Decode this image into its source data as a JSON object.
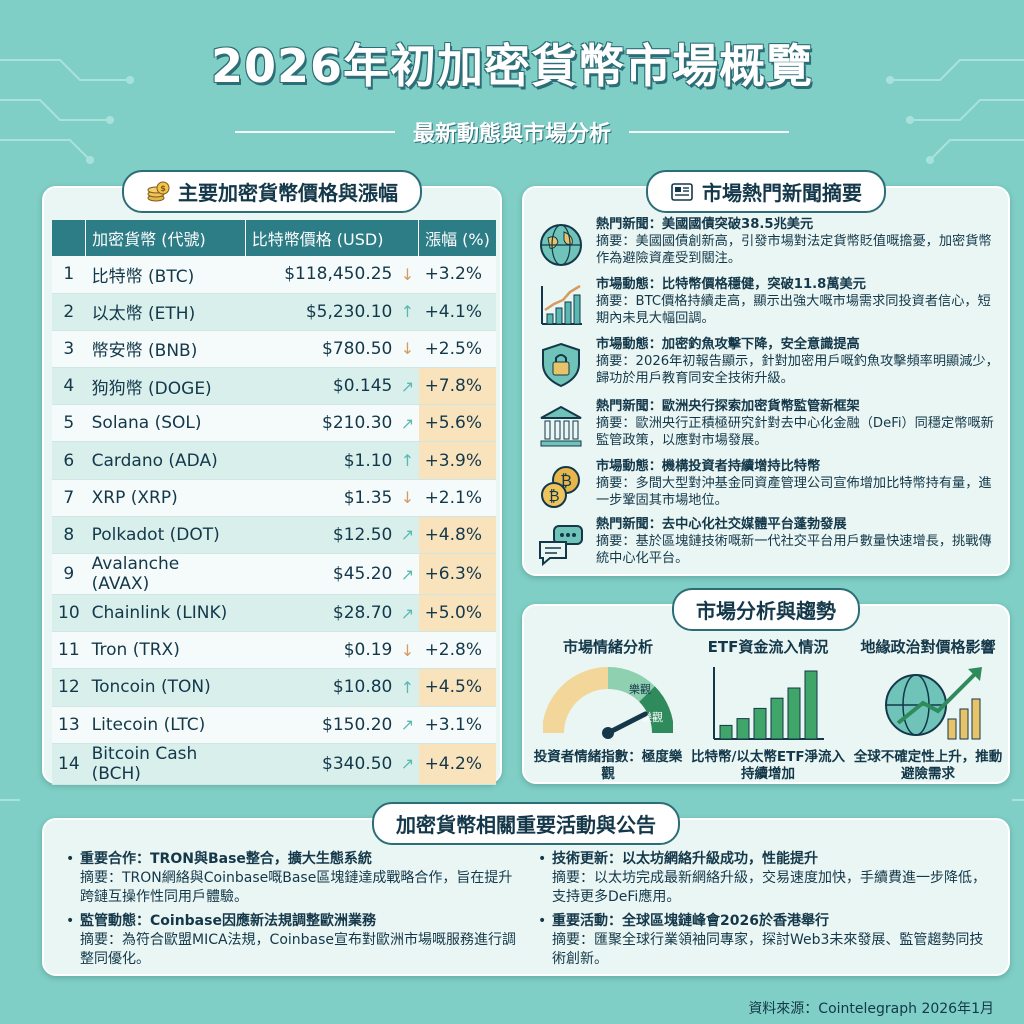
{
  "header": {
    "title": "2026年初加密貨幣市場概覽",
    "subtitle": "最新動態與市場分析"
  },
  "prices": {
    "section_title": "主要加密貨幣價格與漲幅",
    "columns": [
      "加密貨幣 (代號)",
      "比特幣價格 (USD)",
      "漲幅 (%)"
    ],
    "rows": [
      {
        "rank": "1",
        "name": "比特幣 (BTC)",
        "price": "$118,450.25",
        "trend": "down",
        "change": "+3.2%",
        "highlight": false
      },
      {
        "rank": "2",
        "name": "以太幣 (ETH)",
        "price": "$5,230.10",
        "trend": "up",
        "change": "+4.1%",
        "highlight": false
      },
      {
        "rank": "3",
        "name": "幣安幣 (BNB)",
        "price": "$780.50",
        "trend": "down",
        "change": "+2.5%",
        "highlight": false
      },
      {
        "rank": "4",
        "name": "狗狗幣 (DOGE)",
        "price": "$0.145",
        "trend": "diag",
        "change": "+7.8%",
        "highlight": true
      },
      {
        "rank": "5",
        "name": "Solana (SOL)",
        "price": "$210.30",
        "trend": "diag",
        "change": "+5.6%",
        "highlight": true
      },
      {
        "rank": "6",
        "name": "Cardano (ADA)",
        "price": "$1.10",
        "trend": "up",
        "change": "+3.9%",
        "highlight": true
      },
      {
        "rank": "7",
        "name": "XRP (XRP)",
        "price": "$1.35",
        "trend": "down",
        "change": "+2.1%",
        "highlight": false
      },
      {
        "rank": "8",
        "name": "Polkadot (DOT)",
        "price": "$12.50",
        "trend": "diag",
        "change": "+4.8%",
        "highlight": true
      },
      {
        "rank": "9",
        "name": "Avalanche (AVAX)",
        "price": "$45.20",
        "trend": "diag",
        "change": "+6.3%",
        "highlight": true
      },
      {
        "rank": "10",
        "name": "Chainlink (LINK)",
        "price": "$28.70",
        "trend": "diag",
        "change": "+5.0%",
        "highlight": true
      },
      {
        "rank": "11",
        "name": "Tron (TRX)",
        "price": "$0.19",
        "trend": "down",
        "change": "+2.8%",
        "highlight": false
      },
      {
        "rank": "12",
        "name": "Toncoin (TON)",
        "price": "$10.80",
        "trend": "up",
        "change": "+4.5%",
        "highlight": true
      },
      {
        "rank": "13",
        "name": "Litecoin (LTC)",
        "price": "$150.20",
        "trend": "diag",
        "change": "+3.1%",
        "highlight": false
      },
      {
        "rank": "14",
        "name": "Bitcoin Cash (BCH)",
        "price": "$340.50",
        "trend": "diag",
        "change": "+4.2%",
        "highlight": true
      }
    ]
  },
  "news": {
    "section_title": "市場熱門新聞摘要",
    "items": [
      {
        "icon": "globe-icon",
        "head": "熱門新聞：美國國債突破38.5兆美元",
        "body": "摘要：美國國債創新高，引發市場對法定貨幣貶值嘅擔憂，加密貨幣作為避險資產受到關注。"
      },
      {
        "icon": "growth-chart-icon",
        "head": "市場動態：比特幣價格穩健，突破11.8萬美元",
        "body": "摘要：BTC價格持續走高，顯示出強大嘅市場需求同投資者信心，短期內未見大幅回調。"
      },
      {
        "icon": "security-shield-icon",
        "head": "市場動態：加密釣魚攻擊下降，安全意識提高",
        "body": "摘要：2026年初報告顯示，針對加密用戶嘅釣魚攻擊頻率明顯減少，歸功於用戶教育同安全技術升級。"
      },
      {
        "icon": "bank-icon",
        "head": "熱門新聞：歐洲央行探索加密貨幣監管新框架",
        "body": "摘要：歐洲央行正積極研究針對去中心化金融（DeFi）同穩定幣嘅新監管政策，以應對市場發展。"
      },
      {
        "icon": "bitcoin-coins-icon",
        "head": "市場動態：機構投資者持續增持比特幣",
        "body": "摘要：多間大型對沖基金同資產管理公司宣佈增加比特幣持有量，進一步鞏固其市場地位。"
      },
      {
        "icon": "chat-bubbles-icon",
        "head": "熱門新聞：去中心化社交媒體平台蓬勃發展",
        "body": "摘要：基於區塊鏈技術嘅新一代社交平台用戶數量快速增長，挑戰傳統中心化平台。"
      }
    ]
  },
  "analysis": {
    "section_title": "市場分析與趨勢",
    "sentiment": {
      "title": "市場情緒分析",
      "gauge_labels": [
        "樂觀",
        "樂觀"
      ],
      "desc": "投資者情緒指數：極度樂觀",
      "level": 0.85
    },
    "etf": {
      "title": "ETF資金流入情況",
      "desc": "比特幣/以太幣ETF淨流入持續增加",
      "bars": [
        0.2,
        0.3,
        0.45,
        0.6,
        0.75,
        1.0
      ]
    },
    "geo": {
      "title": "地緣政治對價格影響",
      "desc": "全球不確定性上升，推動避險需求"
    }
  },
  "events": {
    "section_title": "加密貨幣相關重要活動與公告",
    "items": [
      {
        "head": "重要合作：TRON與Base整合，擴大生態系統",
        "body": "摘要：TRON網絡與Coinbase嘅Base區塊鏈達成戰略合作，旨在提升跨鏈互操作性同用戶體驗。"
      },
      {
        "head": "監管動態：Coinbase因應新法規調整歐洲業務",
        "body": "摘要：為符合歐盟MICA法規，Coinbase宣布對歐洲市場嘅服務進行調整同優化。"
      },
      {
        "head": "技術更新：以太坊網絡升級成功，性能提升",
        "body": "摘要：以太坊完成最新網絡升級，交易速度加快，手續費進一步降低，支持更多DeFi應用。"
      },
      {
        "head": "重要活動：全球區塊鏈峰會2026於香港舉行",
        "body": "摘要：匯聚全球行業領袖同專家，探討Web3未來發展、監管趨勢同技術創新。"
      }
    ]
  },
  "footer": {
    "source": "資料來源：Cointelegraph 2026年1月"
  },
  "colors": {
    "background": "#7fcfc6",
    "table_header": "#2d7d87",
    "highlight": "#f9e3bd",
    "arrow_down": "#d79a63",
    "arrow_up": "#5bb8b1",
    "gauge_green": "#2f8a5c",
    "etf_green": "#3fa568"
  }
}
